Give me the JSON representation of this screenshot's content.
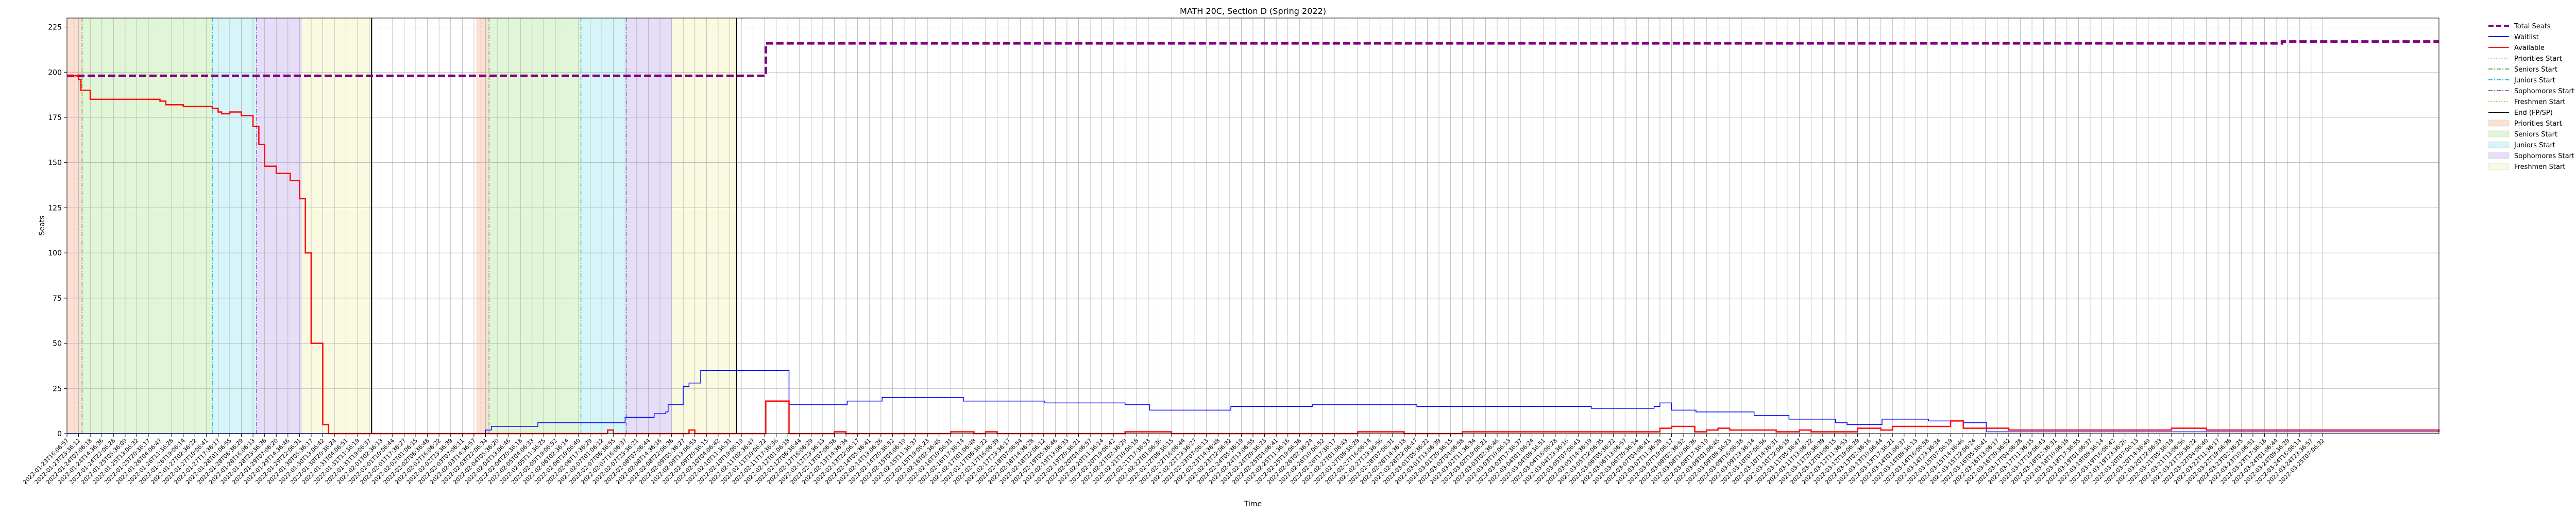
{
  "chart_data": {
    "type": "line",
    "title": "MATH 20C, Section D (Spring 2022)",
    "xlabel": "Time",
    "ylabel": "Seats",
    "ylim": [
      0,
      230
    ],
    "yticks": [
      0,
      25,
      50,
      75,
      100,
      125,
      150,
      175,
      200,
      225
    ],
    "xlim": [
      0,
      204
    ],
    "xtick_labels": [
      "2022-01-23T16:06:57",
      "2022-01-23T23:36:12",
      "2022-01-24T07:06:18",
      "2022-01-24T14:36:36",
      "2022-01-24T22:06:28",
      "2022-01-25T05:36:09",
      "2022-01-25T13:06:32",
      "2022-01-25T20:36:17",
      "2022-01-26T04:06:47",
      "2022-01-26T11:36:28",
      "2022-01-26T19:06:14",
      "2022-01-27T02:36:22",
      "2022-01-27T10:06:41",
      "2022-01-27T17:36:17",
      "2022-01-28T01:06:55",
      "2022-01-28T08:36:29",
      "2022-01-28T16:06:13",
      "2022-01-28T23:36:38",
      "2022-01-29T07:06:20",
      "2022-01-29T14:36:46",
      "2022-01-29T22:06:31",
      "2022-01-30T05:36:17",
      "2022-01-30T13:06:42",
      "2022-01-30T20:36:24",
      "2022-01-31T04:06:51",
      "2022-01-31T11:36:19",
      "2022-01-31T19:06:37",
      "2022-02-01T02:36:13",
      "2022-02-01T10:06:44",
      "2022-02-01T17:36:27",
      "2022-02-02T01:06:15",
      "2022-02-02T08:36:48",
      "2022-02-02T16:06:22",
      "2022-02-02T23:36:39",
      "2022-02-03T07:06:11",
      "2022-02-03T14:36:57",
      "2022-02-03T22:06:34",
      "2022-02-04T05:36:20",
      "2022-02-04T13:06:46",
      "2022-02-04T20:36:18",
      "2022-02-05T04:06:33",
      "2022-02-05T11:36:25",
      "2022-02-05T19:06:52",
      "2022-02-06T02:36:14",
      "2022-02-06T10:06:40",
      "2022-02-06T17:36:29",
      "2022-02-07T01:06:12",
      "2022-02-07T08:36:55",
      "2022-02-07T16:06:37",
      "2022-02-07T23:36:21",
      "2022-02-08T07:06:44",
      "2022-02-08T14:36:16",
      "2022-02-08T22:06:38",
      "2022-02-09T05:36:27",
      "2022-02-09T13:06:53",
      "2022-02-09T20:36:15",
      "2022-02-10T04:06:42",
      "2022-02-10T11:36:31",
      "2022-02-10T19:06:19",
      "2022-02-11T02:36:47",
      "2022-02-11T10:06:22",
      "2022-02-11T17:36:36",
      "2022-02-12T01:06:18",
      "2022-02-12T08:36:44",
      "2022-02-12T16:06:29",
      "2022-02-12T23:36:13",
      "2022-02-13T07:06:58",
      "2022-02-13T14:36:34",
      "2022-02-13T22:06:17",
      "2022-02-14T05:36:41",
      "2022-02-14T13:06:26",
      "2022-02-14T20:36:52",
      "2022-02-15T04:06:19",
      "2022-02-15T11:36:37",
      "2022-02-15T19:06:23",
      "2022-02-16T02:36:45",
      "2022-02-16T10:06:31",
      "2022-02-16T17:36:14",
      "2022-02-17T01:06:48",
      "2022-02-17T08:36:22",
      "2022-02-17T16:06:39",
      "2022-02-17T23:36:17",
      "2022-02-18T07:06:54",
      "2022-02-18T14:36:28",
      "2022-02-18T22:06:12",
      "2022-02-19T05:36:46",
      "2022-02-19T13:06:33",
      "2022-02-19T20:36:21",
      "2022-02-20T04:06:57",
      "2022-02-20T11:36:14",
      "2022-02-20T19:06:42",
      "2022-02-21T02:36:29",
      "2022-02-21T10:06:18",
      "2022-02-21T17:36:53",
      "2022-02-22T01:06:36",
      "2022-02-22T08:36:15",
      "2022-02-22T16:06:44",
      "2022-02-22T23:36:27",
      "2022-02-23T07:06:13",
      "2022-02-23T14:36:48",
      "2022-02-23T22:06:32",
      "2022-02-24T05:36:19",
      "2022-02-24T13:06:55",
      "2022-02-24T20:36:23",
      "2022-02-25T04:06:41",
      "2022-02-25T11:36:16",
      "2022-02-25T19:06:38",
      "2022-02-26T02:36:24",
      "2022-02-26T10:06:52",
      "2022-02-26T17:36:17",
      "2022-02-27T01:06:43",
      "2022-02-27T08:36:29",
      "2022-02-27T16:06:14",
      "2022-02-27T23:36:56",
      "2022-02-28T07:06:31",
      "2022-02-28T14:36:18",
      "2022-02-28T22:06:47",
      "2022-03-01T05:36:22",
      "2022-03-01T13:06:39",
      "2022-03-01T20:36:15",
      "2022-03-02T04:06:58",
      "2022-03-02T11:36:34",
      "2022-03-02T19:06:21",
      "2022-03-03T02:36:46",
      "2022-03-03T10:06:13",
      "2022-03-03T17:36:37",
      "2022-03-04T01:06:24",
      "2022-03-04T08:36:51",
      "2022-03-04T16:06:28",
      "2022-03-04T23:36:16",
      "2022-03-05T07:06:43",
      "2022-03-05T14:36:19",
      "2022-03-05T22:06:35",
      "2022-03-06T05:36:22",
      "2022-03-06T13:06:57",
      "2022-03-06T20:36:14",
      "2022-03-07T04:06:41",
      "2022-03-07T11:36:28",
      "2022-03-07T19:06:17",
      "2022-03-08T02:36:52",
      "2022-03-08T10:06:36",
      "2022-03-08T17:36:19",
      "2022-03-09T01:06:45",
      "2022-03-09T08:36:23",
      "2022-03-09T16:06:38",
      "2022-03-09T23:36:14",
      "2022-03-10T07:06:56",
      "2022-03-10T14:36:31",
      "2022-03-10T22:06:18",
      "2022-03-11T05:36:47",
      "2022-03-11T13:06:22",
      "2022-03-11T20:36:39",
      "2022-03-12T04:06:15",
      "2022-03-12T11:36:53",
      "2022-03-12T19:06:29",
      "2022-03-13T02:36:16",
      "2022-03-13T10:06:44",
      "2022-03-13T17:36:21",
      "2022-03-14T01:06:37",
      "2022-03-14T08:36:13",
      "2022-03-14T16:06:58",
      "2022-03-14T23:36:34",
      "2022-03-15T07:06:19",
      "2022-03-15T14:36:46",
      "2022-03-15T22:06:24",
      "2022-03-16T05:36:41",
      "2022-03-16T13:06:17",
      "2022-03-16T20:36:52",
      "2022-03-17T04:06:28",
      "2022-03-17T11:36:15",
      "2022-03-17T19:06:43",
      "2022-03-18T02:36:31",
      "2022-03-18T10:06:18",
      "2022-03-18T17:36:55",
      "2022-03-19T01:06:37",
      "2022-03-19T08:36:14",
      "2022-03-19T16:06:42",
      "2022-03-19T23:36:26",
      "2022-03-20T07:06:13",
      "2022-03-20T14:36:49",
      "2022-03-20T22:06:33",
      "2022-03-21T05:36:19",
      "2022-03-21T13:06:56",
      "2022-03-21T20:36:22",
      "2022-03-22T04:06:40",
      "2022-03-22T11:36:17",
      "2022-03-22T19:06:38",
      "2022-03-23T02:36:25",
      "2022-03-23T10:06:51",
      "2022-03-23T17:36:18",
      "2022-03-24T01:06:44",
      "2022-03-24T08:36:29",
      "2022-03-24T16:06:14",
      "2022-03-24T23:36:57",
      "2022-03-25T07:06:32"
    ],
    "series": [
      {
        "name": "Total Seats",
        "color": "#800080",
        "style": "dashed",
        "x": [
          0,
          1,
          60,
          60.1,
          190,
          190.5,
          204
        ],
        "y": [
          198,
          198,
          198,
          216,
          216,
          217,
          217
        ]
      },
      {
        "name": "Waitlist",
        "color": "#0000ff",
        "style": "solid",
        "x": [
          0,
          35,
          36,
          36.5,
          40,
          40.5,
          47,
          48,
          49.5,
          50.5,
          51.5,
          51.7,
          52.5,
          53,
          53.5,
          54.5,
          62,
          62.1,
          67,
          67.1,
          70,
          70.1,
          77,
          77.1,
          84,
          84.1,
          90,
          91,
          93,
          93.1,
          100,
          100.1,
          107,
          107.1,
          116,
          116.1,
          131,
          131.1,
          136,
          136.5,
          137,
          138,
          140,
          140.1,
          145,
          145.1,
          148,
          148.1,
          152,
          152.1,
          153,
          153.1,
          156,
          156.1,
          160,
          160.1,
          163,
          163.1,
          165,
          165.1,
          181,
          204
        ],
        "y": [
          0,
          0,
          2,
          4,
          4,
          6,
          6,
          9,
          9,
          11,
          12,
          16,
          16,
          26,
          28,
          35,
          35,
          16,
          16,
          18,
          18,
          20,
          20,
          18,
          18,
          17,
          17,
          16,
          16,
          13,
          13,
          15,
          15,
          16,
          16,
          15,
          15,
          14,
          14,
          15,
          17,
          13,
          13,
          12,
          12,
          10,
          10,
          8,
          8,
          6,
          6,
          5,
          5,
          8,
          8,
          7,
          7,
          6,
          6,
          1,
          1,
          1
        ]
      },
      {
        "name": "Available",
        "color": "#ff0000",
        "style": "solid",
        "x": [
          0,
          0.5,
          1,
          1.2,
          2,
          7,
          8,
          8.5,
          10,
          12,
          12.5,
          13,
          13.3,
          14,
          14.5,
          15,
          16,
          16.5,
          17,
          18,
          19,
          19.2,
          20,
          20.5,
          21,
          22,
          22.5,
          23,
          28,
          46,
          46.5,
          47,
          48,
          53,
          53.5,
          54,
          60,
          60.1,
          62,
          62.1,
          65,
          66,
          67,
          75,
          76,
          78,
          79,
          80,
          82,
          90,
          91,
          94,
          95,
          110,
          111,
          114,
          115,
          119,
          120,
          136,
          137,
          138,
          140,
          141,
          142,
          143,
          146,
          147,
          149,
          150,
          153,
          154,
          156,
          157,
          161,
          162,
          163,
          163.1,
          166,
          167,
          180,
          181,
          183,
          184,
          204
        ],
        "y": [
          198,
          198,
          196,
          190,
          185,
          185,
          184,
          182,
          181,
          181,
          180,
          178,
          177,
          178,
          178,
          176,
          170,
          160,
          148,
          144,
          144,
          140,
          130,
          100,
          50,
          5,
          0,
          0,
          0,
          0,
          2,
          0,
          0,
          0,
          2,
          0,
          0,
          18,
          18,
          0,
          0,
          1,
          0,
          0,
          1,
          0,
          1,
          0,
          0,
          0,
          1,
          1,
          0,
          0,
          1,
          1,
          0,
          0,
          1,
          1,
          3,
          4,
          1,
          2,
          3,
          2,
          2,
          1,
          2,
          1,
          1,
          3,
          2,
          4,
          4,
          7,
          7,
          3,
          3,
          2,
          2,
          3,
          3,
          2,
          1
        ]
      }
    ],
    "vlines": [
      {
        "name": "Priorities Start",
        "x": 0.6,
        "color": "#f4a582",
        "style": "dotted"
      },
      {
        "name": "Seniors Start",
        "x": 1.3,
        "color": "#4daf4a",
        "style": "dashdot"
      },
      {
        "name": "Juniors Start",
        "x": 12.5,
        "color": "#17becf",
        "style": "dashdot"
      },
      {
        "name": "Sophomores Start",
        "x": 16.3,
        "color": "#9467bd",
        "style": "dashdot"
      },
      {
        "name": "End (FP/SP)",
        "x": 26.2,
        "color": "#000000",
        "style": "solid"
      },
      {
        "name": "Priorities Start",
        "x": 35.6,
        "color": "#f4a582",
        "style": "dotted"
      },
      {
        "name": "Seniors Start",
        "x": 36.3,
        "color": "#4daf4a",
        "style": "dashdot"
      },
      {
        "name": "Juniors Start",
        "x": 44.2,
        "color": "#17becf",
        "style": "dashdot"
      },
      {
        "name": "Sophomores Start",
        "x": 48.1,
        "color": "#9467bd",
        "style": "dashdot"
      },
      {
        "name": "End (FP/SP)",
        "x": 57.6,
        "color": "#000000",
        "style": "solid"
      }
    ],
    "spans": [
      {
        "name": "Priorities Start",
        "x0": 0,
        "x1": 1.3,
        "color": "#f7c6b0"
      },
      {
        "name": "Seniors Start",
        "x0": 1.3,
        "x1": 12.5,
        "color": "#c7efb5"
      },
      {
        "name": "Juniors Start",
        "x0": 12.5,
        "x1": 16.3,
        "color": "#b3ecf2"
      },
      {
        "name": "Sophomores Start",
        "x0": 16.3,
        "x1": 20.2,
        "color": "#d1c1f2"
      },
      {
        "name": "Freshmen Start",
        "x0": 20.2,
        "x1": 26.2,
        "color": "#f6f6c8"
      },
      {
        "name": "Priorities Start",
        "x0": 35.2,
        "x1": 36.3,
        "color": "#f7c6b0"
      },
      {
        "name": "Seniors Start",
        "x0": 36.3,
        "x1": 44.2,
        "color": "#c7efb5"
      },
      {
        "name": "Juniors Start",
        "x0": 44.2,
        "x1": 48.1,
        "color": "#b3ecf2"
      },
      {
        "name": "Sophomores Start",
        "x0": 48.1,
        "x1": 52.0,
        "color": "#d1c1f2"
      },
      {
        "name": "Freshmen Start",
        "x0": 52.0,
        "x1": 57.6,
        "color": "#f6f6c8"
      }
    ],
    "legend": {
      "placement": "outside-right",
      "entries": [
        {
          "label": "Total Seats",
          "kind": "line",
          "color": "#800080",
          "style": "dashed"
        },
        {
          "label": "Waitlist",
          "kind": "line",
          "color": "#0000ff",
          "style": "solid"
        },
        {
          "label": "Available",
          "kind": "line",
          "color": "#ff0000",
          "style": "solid"
        },
        {
          "label": "Priorities Start",
          "kind": "line",
          "color": "#f4a582",
          "style": "dotted"
        },
        {
          "label": "Seniors Start",
          "kind": "line",
          "color": "#4daf4a",
          "style": "dashdot"
        },
        {
          "label": "Juniors Start",
          "kind": "line",
          "color": "#17becf",
          "style": "dashdot"
        },
        {
          "label": "Sophomores Start",
          "kind": "line",
          "color": "#9467bd",
          "style": "dashdot"
        },
        {
          "label": "Freshmen Start",
          "kind": "line",
          "color": "#bcbd22",
          "style": "dotted"
        },
        {
          "label": "End (FP/SP)",
          "kind": "line",
          "color": "#000000",
          "style": "solid"
        },
        {
          "label": "Priorities Start",
          "kind": "patch",
          "color": "#f7c6b0"
        },
        {
          "label": "Seniors Start",
          "kind": "patch",
          "color": "#c7efb5"
        },
        {
          "label": "Juniors Start",
          "kind": "patch",
          "color": "#b3ecf2"
        },
        {
          "label": "Sophomores Start",
          "kind": "patch",
          "color": "#d1c1f2"
        },
        {
          "label": "Freshmen Start",
          "kind": "patch",
          "color": "#f6f6c8"
        }
      ]
    },
    "grid": true
  }
}
